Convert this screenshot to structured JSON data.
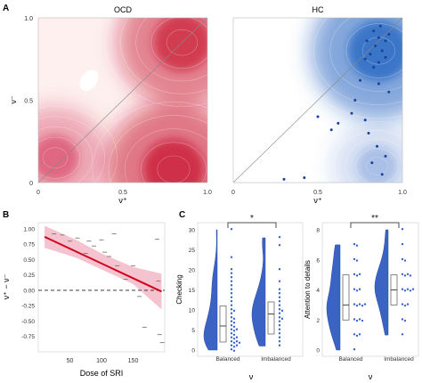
{
  "panel_labels": [
    "A",
    "B",
    "C"
  ],
  "chart_data": [
    {
      "type": "heatmap",
      "title": "OCD",
      "xlabel": "ν⁺",
      "ylabel": "ν⁻",
      "xlim": [
        0,
        1.0
      ],
      "ylim": [
        0,
        1.0
      ],
      "xticks": [
        "0",
        "0.5",
        "1.0"
      ],
      "yticks": [
        "0",
        "0.5",
        "1.0"
      ],
      "colormap": "white-to-red",
      "color": "#c8102e",
      "diagonal": true,
      "density_peaks": [
        {
          "x": 0.8,
          "y": 0.08,
          "intensity": 1.0
        },
        {
          "x": 0.85,
          "y": 0.85,
          "intensity": 0.9
        },
        {
          "x": 0.1,
          "y": 0.15,
          "intensity": 0.55
        }
      ],
      "density_low": {
        "x": 0.3,
        "y": 0.62
      }
    },
    {
      "type": "heatmap",
      "title": "HC",
      "xlabel": "ν⁺",
      "ylabel": "",
      "xlim": [
        0,
        1.0
      ],
      "ylim": [
        0,
        1.0
      ],
      "xticks": [
        "0",
        "0.5",
        "1.0"
      ],
      "yticks": [],
      "colormap": "white-to-blue",
      "color": "#1f5fbf",
      "diagonal": true,
      "density_peaks": [
        {
          "x": 0.86,
          "y": 0.8,
          "intensity": 1.0
        },
        {
          "x": 0.85,
          "y": 0.1,
          "intensity": 0.35
        }
      ],
      "points": [
        {
          "x": 0.83,
          "y": 0.92
        },
        {
          "x": 0.86,
          "y": 0.88
        },
        {
          "x": 0.9,
          "y": 0.86
        },
        {
          "x": 0.84,
          "y": 0.83
        },
        {
          "x": 0.88,
          "y": 0.8
        },
        {
          "x": 0.81,
          "y": 0.78
        },
        {
          "x": 0.9,
          "y": 0.76
        },
        {
          "x": 0.86,
          "y": 0.73
        },
        {
          "x": 0.83,
          "y": 0.7
        },
        {
          "x": 0.78,
          "y": 0.75
        },
        {
          "x": 0.92,
          "y": 0.9
        },
        {
          "x": 0.87,
          "y": 0.95
        },
        {
          "x": 0.79,
          "y": 0.86
        },
        {
          "x": 0.75,
          "y": 0.62
        },
        {
          "x": 0.72,
          "y": 0.5
        },
        {
          "x": 0.7,
          "y": 0.42
        },
        {
          "x": 0.78,
          "y": 0.38
        },
        {
          "x": 0.8,
          "y": 0.3
        },
        {
          "x": 0.62,
          "y": 0.36
        },
        {
          "x": 0.5,
          "y": 0.4
        },
        {
          "x": 0.58,
          "y": 0.32
        },
        {
          "x": 0.85,
          "y": 0.22
        },
        {
          "x": 0.9,
          "y": 0.16
        },
        {
          "x": 0.82,
          "y": 0.12
        },
        {
          "x": 0.88,
          "y": 0.05
        },
        {
          "x": 0.3,
          "y": 0.02
        },
        {
          "x": 0.42,
          "y": 0.03
        },
        {
          "x": 0.92,
          "y": 0.55
        },
        {
          "x": 0.86,
          "y": 0.6
        }
      ]
    },
    {
      "type": "scatter",
      "xlabel": "Dose of SRI",
      "ylabel": "ν⁺ − ν⁻",
      "xlim": [
        0,
        200
      ],
      "ylim": [
        -1.0,
        1.1
      ],
      "xticks": [
        50,
        100,
        150
      ],
      "yticks": [
        -0.75,
        -0.5,
        -0.25,
        0.0,
        0.25,
        0.5,
        0.75,
        1.0
      ],
      "reference_line": 0.0,
      "regression": {
        "x": [
          10,
          195
        ],
        "y": [
          0.87,
          -0.02
        ],
        "color": "#d0021b"
      },
      "confidence_band": {
        "x": [
          10,
          60,
          100,
          150,
          195
        ],
        "upper": [
          1.05,
          0.82,
          0.6,
          0.38,
          0.27
        ],
        "lower": [
          0.69,
          0.53,
          0.34,
          0.1,
          -0.31
        ]
      },
      "points": [
        {
          "x": 25,
          "y": 0.92
        },
        {
          "x": 38,
          "y": 0.9
        },
        {
          "x": 50,
          "y": 0.8
        },
        {
          "x": 62,
          "y": 0.85
        },
        {
          "x": 75,
          "y": 0.6
        },
        {
          "x": 80,
          "y": 0.8
        },
        {
          "x": 88,
          "y": 0.72
        },
        {
          "x": 100,
          "y": 0.82
        },
        {
          "x": 105,
          "y": 0.62
        },
        {
          "x": 112,
          "y": 0.55
        },
        {
          "x": 120,
          "y": 0.92
        },
        {
          "x": 125,
          "y": 0.4
        },
        {
          "x": 138,
          "y": 0.18
        },
        {
          "x": 150,
          "y": 0.4
        },
        {
          "x": 160,
          "y": -0.1
        },
        {
          "x": 168,
          "y": -0.6
        },
        {
          "x": 188,
          "y": 0.83
        },
        {
          "x": 190,
          "y": 0.15
        },
        {
          "x": 192,
          "y": -0.72
        },
        {
          "x": 196,
          "y": -0.85
        }
      ]
    },
    {
      "type": "violin",
      "xlabel": "ν",
      "ylabel": "Checking",
      "categories": [
        "Balanced",
        "Imbalanced"
      ],
      "ylim": [
        0,
        30
      ],
      "yticks": [
        0,
        5,
        10,
        15,
        20,
        25,
        30
      ],
      "color": "#3a63c4",
      "significance": "*",
      "boxes": [
        {
          "q1": 2,
          "median": 6,
          "q3": 11
        },
        {
          "q1": 4,
          "median": 9,
          "q3": 12
        }
      ],
      "points": [
        [
          0,
          0,
          1,
          1,
          1,
          2,
          2,
          2,
          2,
          3,
          3,
          3,
          4,
          4,
          5,
          5,
          5,
          6,
          6,
          7,
          7,
          8,
          8,
          9,
          10,
          10,
          11,
          12,
          13,
          14,
          15,
          16,
          17,
          18,
          19,
          20,
          23,
          30
        ],
        [
          1,
          2,
          3,
          4,
          5,
          6,
          7,
          8,
          8,
          9,
          10,
          10,
          11,
          12,
          13,
          14,
          15,
          17,
          20,
          26,
          28
        ]
      ]
    },
    {
      "type": "violin",
      "xlabel": "ν",
      "ylabel": "Attention to details",
      "categories": [
        "Balanced",
        "Imbalanced"
      ],
      "ylim": [
        0,
        8
      ],
      "yticks": [
        0,
        2,
        4,
        6,
        8
      ],
      "color": "#3a63c4",
      "significance": "**",
      "boxes": [
        {
          "q1": 2,
          "median": 3,
          "q3": 5
        },
        {
          "q1": 3,
          "median": 4,
          "q3": 5
        }
      ],
      "points": [
        [
          0,
          1,
          1,
          1,
          2,
          2,
          2,
          2,
          3,
          3,
          3,
          3,
          3,
          4,
          4,
          4,
          5,
          5,
          5,
          6,
          6,
          7,
          7
        ],
        [
          1,
          2,
          2,
          3,
          3,
          3,
          4,
          4,
          4,
          4,
          4,
          5,
          5,
          5,
          5,
          6,
          6,
          7,
          8
        ]
      ]
    }
  ]
}
